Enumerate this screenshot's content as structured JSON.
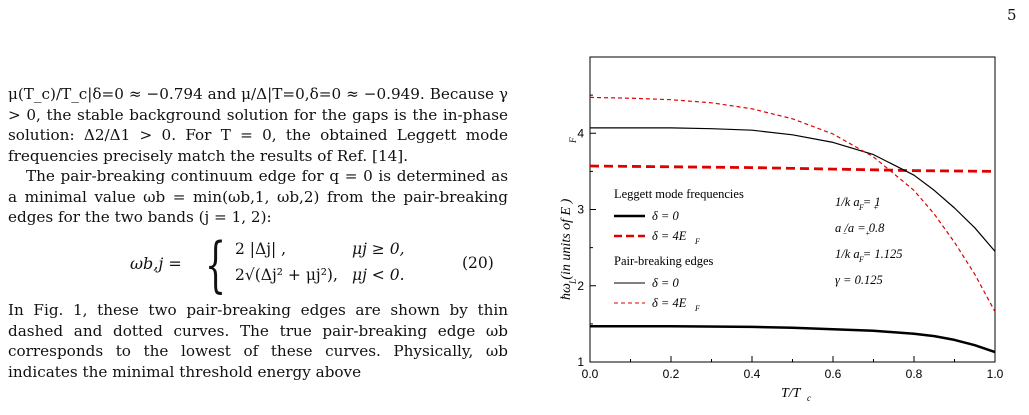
{
  "page": {
    "number": "5"
  },
  "text": {
    "para1_line1": "μ(T_c)/T_c|δ=0 ≈ −0.794 and μ/Δ|T=0,δ=0 ≈ −0.949.",
    "para1_rest": "Because γ > 0, the stable background solution for the gaps is the in-phase solution: Δ2/Δ1 > 0. For T = 0, the obtained Leggett mode frequencies precisely match the results of Ref. [14].",
    "para2": "The pair-breaking continuum edge for q = 0 is determined as a minimal value ωb = min(ωb,1, ωb,2) from the pair-breaking edges for the two bands (j = 1, 2):",
    "para3": "In Fig. 1, these two pair-breaking edges are shown by thin dashed and dotted curves. The true pair-breaking edge ωb corresponds to the lowest of these curves. Physically, ωb indicates the minimal threshold energy above"
  },
  "equation": {
    "lhs": "ωb,j =",
    "case1": "2 |Δj| ,",
    "cond1": "μj ≥ 0,",
    "case2": "2√(Δj² + μj²),",
    "cond2": "μj < 0.",
    "number": "(20)"
  },
  "legend": {
    "title": "Leggett mode frequencies",
    "item1": "δ = 0",
    "item2": "δ = 4E",
    "section2": "Pair-breaking edges",
    "item3": "δ = 0",
    "item4": "δ = 4E"
  },
  "params": {
    "p1": "1/k a = 1",
    "p2": "a /a = 0.8",
    "p3": "1/k a = 1.125",
    "p4": "γ = 0.125"
  },
  "chart_data": {
    "type": "line",
    "xlabel": "T/T",
    "ylabel": "ħω (in units of E )",
    "xlim": [
      0.0,
      1.0
    ],
    "ylim": [
      1.0,
      5.0
    ],
    "xticks": [
      "0.0",
      "0.2",
      "0.4",
      "0.6",
      "0.8",
      "1.0"
    ],
    "yticks": [
      "1",
      "2",
      "3",
      "4"
    ],
    "series": [
      {
        "style": "thick-solid",
        "color": "#000000",
        "x": [
          0.0,
          0.2,
          0.4,
          0.5,
          0.6,
          0.7,
          0.8,
          0.85,
          0.9,
          0.95,
          1.0
        ],
        "y": [
          1.47,
          1.47,
          1.46,
          1.45,
          1.43,
          1.41,
          1.37,
          1.34,
          1.29,
          1.22,
          1.13
        ]
      },
      {
        "style": "thick-dashed",
        "color": "#e00000",
        "x": [
          0.0,
          0.2,
          0.4,
          0.6,
          0.8,
          1.0
        ],
        "y": [
          3.57,
          3.56,
          3.55,
          3.53,
          3.51,
          3.5
        ]
      },
      {
        "style": "thin-solid",
        "color": "#000000",
        "x": [
          0.0,
          0.2,
          0.3,
          0.4,
          0.5,
          0.6,
          0.7,
          0.8,
          0.85,
          0.9,
          0.95,
          1.0
        ],
        "y": [
          4.07,
          4.07,
          4.06,
          4.04,
          3.98,
          3.88,
          3.72,
          3.45,
          3.25,
          3.02,
          2.76,
          2.45
        ]
      },
      {
        "style": "thin-dashed",
        "color": "#e00000",
        "x": [
          0.0,
          0.1,
          0.2,
          0.3,
          0.4,
          0.5,
          0.6,
          0.7,
          0.8,
          0.85,
          0.9,
          0.95,
          1.0
        ],
        "y": [
          4.47,
          4.46,
          4.44,
          4.4,
          4.32,
          4.19,
          3.99,
          3.69,
          3.25,
          2.94,
          2.57,
          2.15,
          1.66
        ]
      }
    ]
  }
}
